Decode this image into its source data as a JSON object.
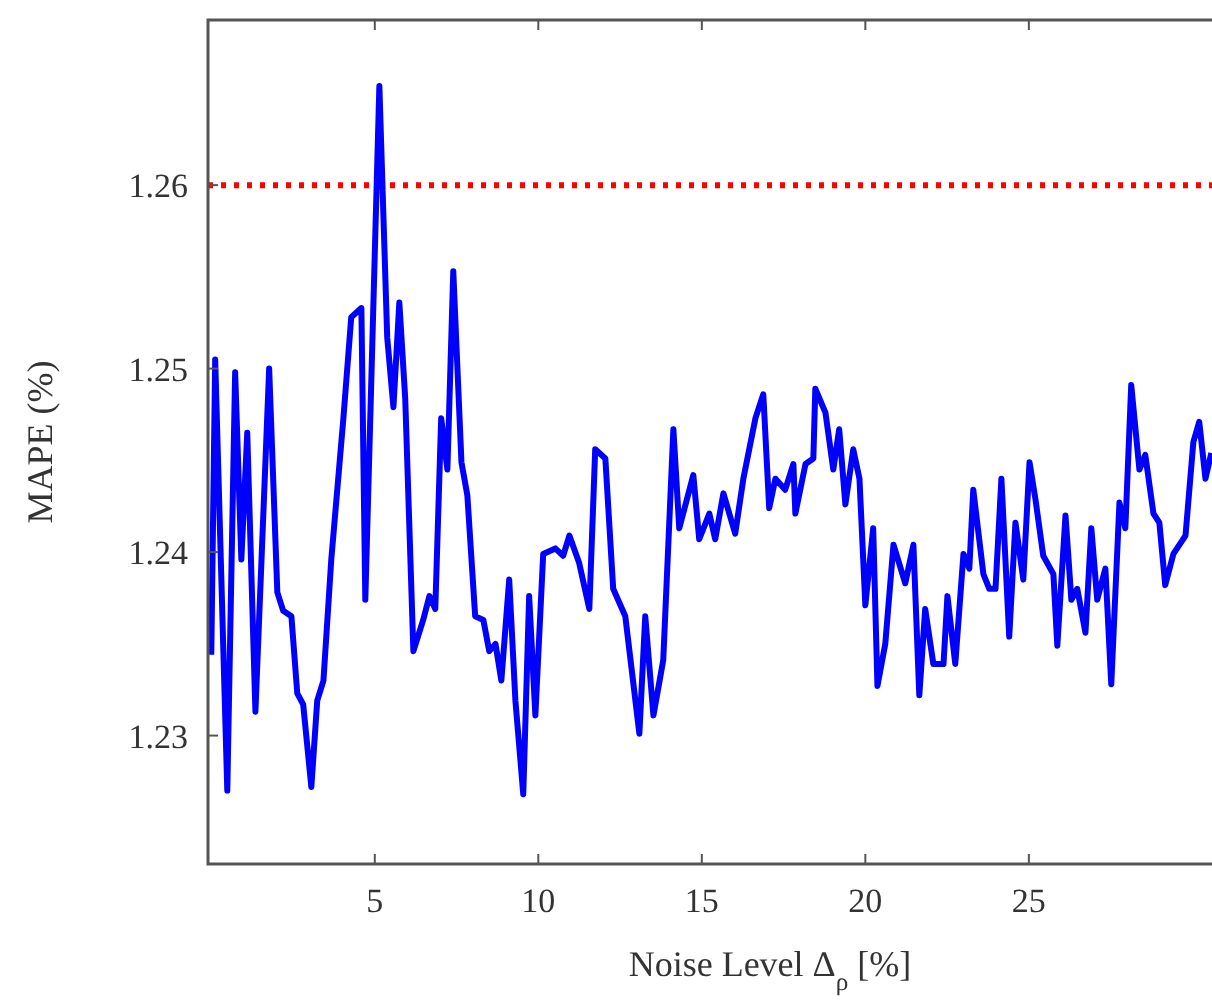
{
  "chart_data": {
    "type": "line",
    "xlabel": "Noise Level Δ$_{ρ}$ [%]",
    "ylabel": "MAPE (%)",
    "xlim": [
      -0.1,
      30.6
    ],
    "ylim": [
      1.223,
      1.269
    ],
    "xticks": [
      5,
      10,
      15,
      20,
      25
    ],
    "yticks": [
      1.23,
      1.24,
      1.25,
      1.26
    ],
    "grid": false,
    "line_style": "solid",
    "ref_lines": [
      {
        "axis": "y",
        "value": 1.26,
        "color": "#ff0000",
        "line_style": "dotted"
      }
    ],
    "series": [
      {
        "color": "#0000ff",
        "x": [
          0,
          0.12,
          0.49,
          0.73,
          0.92,
          1.1,
          1.35,
          1.77,
          2.02,
          2.2,
          2.45,
          2.63,
          2.81,
          3.06,
          3.24,
          3.43,
          3.67,
          4.04,
          4.28,
          4.59,
          4.71,
          5.14,
          5.38,
          5.57,
          5.75,
          5.93,
          6.18,
          6.48,
          6.67,
          6.85,
          7.03,
          7.22,
          7.4,
          7.65,
          7.83,
          8.07,
          8.32,
          8.5,
          8.69,
          8.87,
          9.11,
          9.3,
          9.54,
          9.72,
          9.91,
          10.15,
          10.52,
          10.76,
          10.95,
          11.25,
          11.56,
          11.74,
          12.05,
          12.29,
          12.66,
          13.09,
          13.27,
          13.52,
          13.82,
          14.13,
          14.31,
          14.74,
          14.92,
          15.23,
          15.41,
          15.66,
          16.02,
          16.27,
          16.64,
          16.88,
          17.06,
          17.25,
          17.55,
          17.8,
          17.86,
          18.17,
          18.41,
          18.47,
          18.78,
          19.02,
          19.2,
          19.39,
          19.63,
          19.82,
          20,
          20.24,
          20.37,
          20.61,
          20.86,
          21.22,
          21.47,
          21.65,
          21.83,
          22.08,
          22.39,
          22.51,
          22.75,
          23,
          23.18,
          23.3,
          23.61,
          23.79,
          23.98,
          24.16,
          24.4,
          24.59,
          24.83,
          25.02,
          25.2,
          25.44,
          25.75,
          25.87,
          26.12,
          26.3,
          26.48,
          26.73,
          26.91,
          27.09,
          27.34,
          27.52,
          27.77,
          27.95,
          28.13,
          28.38,
          28.56,
          28.81,
          28.99,
          29.17,
          29.42,
          29.79,
          30.03,
          30.21,
          30.4,
          30.58
        ],
        "values": [
          1.2344,
          1.2505,
          1.227,
          1.2498,
          1.2396,
          1.2465,
          1.2313,
          1.25,
          1.2378,
          1.2368,
          1.2365,
          1.2323,
          1.2317,
          1.2272,
          1.2319,
          1.233,
          1.2396,
          1.2473,
          1.2528,
          1.2533,
          1.2374,
          1.2654,
          1.2517,
          1.2479,
          1.2536,
          1.2484,
          1.2346,
          1.2363,
          1.2376,
          1.2369,
          1.2473,
          1.2445,
          1.2553,
          1.2449,
          1.2431,
          1.2365,
          1.2363,
          1.2346,
          1.235,
          1.233,
          1.2385,
          1.2319,
          1.2268,
          1.2376,
          1.2311,
          1.2399,
          1.2402,
          1.2398,
          1.2409,
          1.2394,
          1.2369,
          1.2456,
          1.2451,
          1.238,
          1.2365,
          1.2301,
          1.2365,
          1.2311,
          1.2341,
          1.2467,
          1.2413,
          1.2442,
          1.2407,
          1.2421,
          1.2407,
          1.2432,
          1.241,
          1.244,
          1.2473,
          1.2486,
          1.2424,
          1.244,
          1.2434,
          1.2448,
          1.2421,
          1.2448,
          1.2451,
          1.2489,
          1.2476,
          1.2445,
          1.2467,
          1.2426,
          1.2456,
          1.244,
          1.2371,
          1.2413,
          1.2327,
          1.235,
          1.2404,
          1.2383,
          1.2404,
          1.2322,
          1.2369,
          1.2339,
          1.2339,
          1.2376,
          1.2339,
          1.2399,
          1.2391,
          1.2434,
          1.2388,
          1.238,
          1.238,
          1.244,
          1.2354,
          1.2416,
          1.2385,
          1.2449,
          1.2429,
          1.2398,
          1.2388,
          1.2349,
          1.242,
          1.2374,
          1.238,
          1.2356,
          1.2413,
          1.2374,
          1.2391,
          1.2328,
          1.2427,
          1.2413,
          1.2491,
          1.2445,
          1.2453,
          1.2421,
          1.2416,
          1.2382,
          1.2399,
          1.2409,
          1.246,
          1.2471,
          1.244,
          1.2454
        ]
      }
    ]
  }
}
